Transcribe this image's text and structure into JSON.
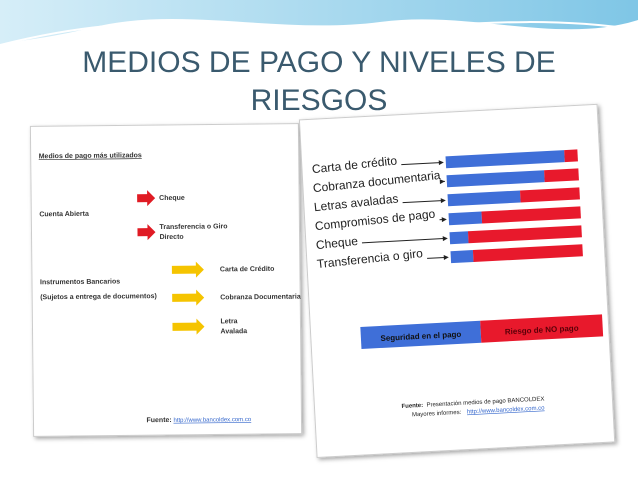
{
  "title_lines": [
    "MEDIOS DE PAGO Y NIVELES DE",
    "RIESGOS"
  ],
  "left_panel": {
    "heading": "Medios de pago más utilizados",
    "groups": [
      {
        "label": "Cuenta Abierta",
        "items": [
          [
            "Cheque"
          ],
          [
            "Transferencia o Giro",
            "Directo"
          ]
        ]
      },
      {
        "label": "Instrumentos Bancarios",
        "note": "(Sujetos a entrega de documentos)",
        "items": [
          [
            "Carta de Crédito"
          ],
          [
            "Cobranza Documentaria"
          ],
          [
            "Letra",
            "Avalada"
          ]
        ]
      }
    ],
    "source_label": "Fuente:",
    "source_url": "http://www.bancoldex.com.co"
  },
  "right_panel": {
    "rows": [
      {
        "label": "Carta de crédito",
        "security": 90
      },
      {
        "label": "Cobranza documentaria",
        "security": 74
      },
      {
        "label": "Letras avaladas",
        "security": 55
      },
      {
        "label": "Compromisos de pago",
        "security": 25
      },
      {
        "label": "Cheque",
        "security": 14
      },
      {
        "label": "Transferencia o giro",
        "security": 17
      }
    ],
    "legend": [
      "Seguridad en el pago",
      "Riesgo de NO pago"
    ],
    "source_label": "Fuente:",
    "source": "Presentación medios de pago BANCOLDEX",
    "more_label": "Mayores informes:",
    "more_url": "http://www.bancoldex.com.co"
  }
}
